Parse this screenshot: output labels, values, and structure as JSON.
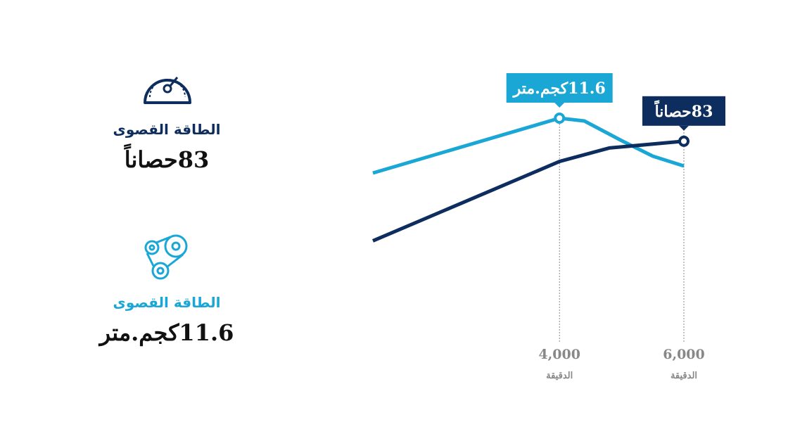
{
  "stats": [
    {
      "title": "الطاقة القصوى",
      "value": "83حصاناً"
    },
    {
      "title": "الطاقة القصوى",
      "value": "11.6كجم.متر"
    }
  ],
  "chart_data": {
    "type": "line",
    "xlim": [
      1000,
      6000
    ],
    "xticks": [
      {
        "value": 4000,
        "label": "4,000"
      },
      {
        "value": 6000,
        "label": "6,000"
      }
    ],
    "xlabel": "الدقيقة",
    "ylim": [
      0,
      15
    ],
    "y2lim": [
      0,
      125
    ],
    "series": [
      {
        "color": "#1aa7d6",
        "x": [
          1000,
          4000,
          4400,
          5000,
          5500,
          6000
        ],
        "values": [
          7.7,
          11.6,
          11.4,
          10.0,
          8.9,
          8.2
        ],
        "value_labels": [
          null,
          "11.6كجم.متر",
          null,
          null,
          null,
          null
        ]
      },
      {
        "color": "#0d2d5e",
        "axis": "y2",
        "x": [
          1000,
          4000,
          4800,
          6000
        ],
        "values": [
          24,
          71,
          79,
          83
        ],
        "value_labels": [
          null,
          null,
          null,
          "83حصاناً"
        ]
      }
    ]
  }
}
